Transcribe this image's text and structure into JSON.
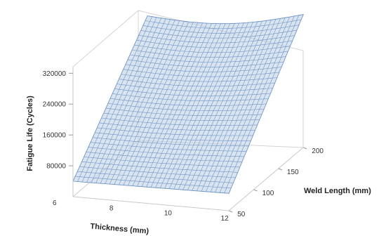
{
  "chart_data": {
    "type": "surface",
    "title": "",
    "xlabel": "Thickness (mm)",
    "ylabel": "Weld Length (mm)",
    "zlabel": "Fatigue Life (Cycles)",
    "x_ticks": [
      "6",
      "8",
      "10",
      "12"
    ],
    "y_ticks": [
      "50",
      "100",
      "150",
      "200"
    ],
    "z_ticks": [
      "80000",
      "160000",
      "240000",
      "320000"
    ],
    "xlim": [
      6.5,
      12
    ],
    "ylim": [
      50,
      200
    ],
    "zlim": [
      0,
      320000
    ],
    "surface_color": "#b9cde6",
    "mesh_color": "#6f93c4",
    "grid": true,
    "corner_values": [
      {
        "x": 6.5,
        "y": 50,
        "z": 40000
      },
      {
        "x": 12,
        "y": 50,
        "z": 45000
      },
      {
        "x": 6.5,
        "y": 200,
        "z": 305000
      },
      {
        "x": 12,
        "y": 200,
        "z": 345000
      }
    ]
  }
}
